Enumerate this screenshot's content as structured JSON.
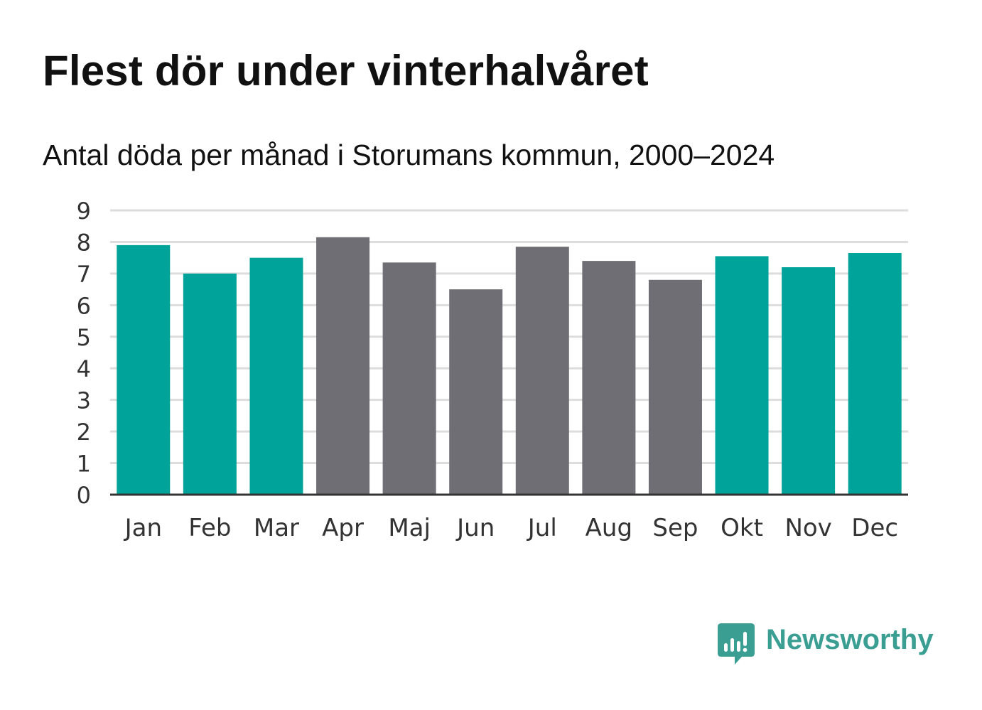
{
  "title": "Flest dör under vinterhalvåret",
  "subtitle": "Antal döda per månad i Storumans kommun, 2000–2024",
  "brand": {
    "name": "Newsworthy",
    "icon": "newsworthy-logo-icon",
    "color": "#3a9e93"
  },
  "chart_data": {
    "type": "bar",
    "title": "Flest dör under vinterhalvåret",
    "subtitle": "Antal döda per månad i Storumans kommun, 2000–2024",
    "xlabel": "",
    "ylabel": "",
    "ylim": [
      0,
      9
    ],
    "yticks": [
      0,
      1,
      2,
      3,
      4,
      5,
      6,
      7,
      8,
      9
    ],
    "grid": true,
    "categories": [
      "Jan",
      "Feb",
      "Mar",
      "Apr",
      "Maj",
      "Jun",
      "Jul",
      "Aug",
      "Sep",
      "Okt",
      "Nov",
      "Dec"
    ],
    "values": [
      7.9,
      7.0,
      7.5,
      8.15,
      7.35,
      6.5,
      7.85,
      7.4,
      6.8,
      7.55,
      7.2,
      7.65
    ],
    "highlight": [
      true,
      true,
      true,
      false,
      false,
      false,
      false,
      false,
      false,
      true,
      true,
      true
    ],
    "colors": {
      "highlight": "#00a39a",
      "base": "#6f6e74",
      "grid": "#dddddd",
      "axis": "#333333",
      "tick_text": "#333333"
    }
  }
}
